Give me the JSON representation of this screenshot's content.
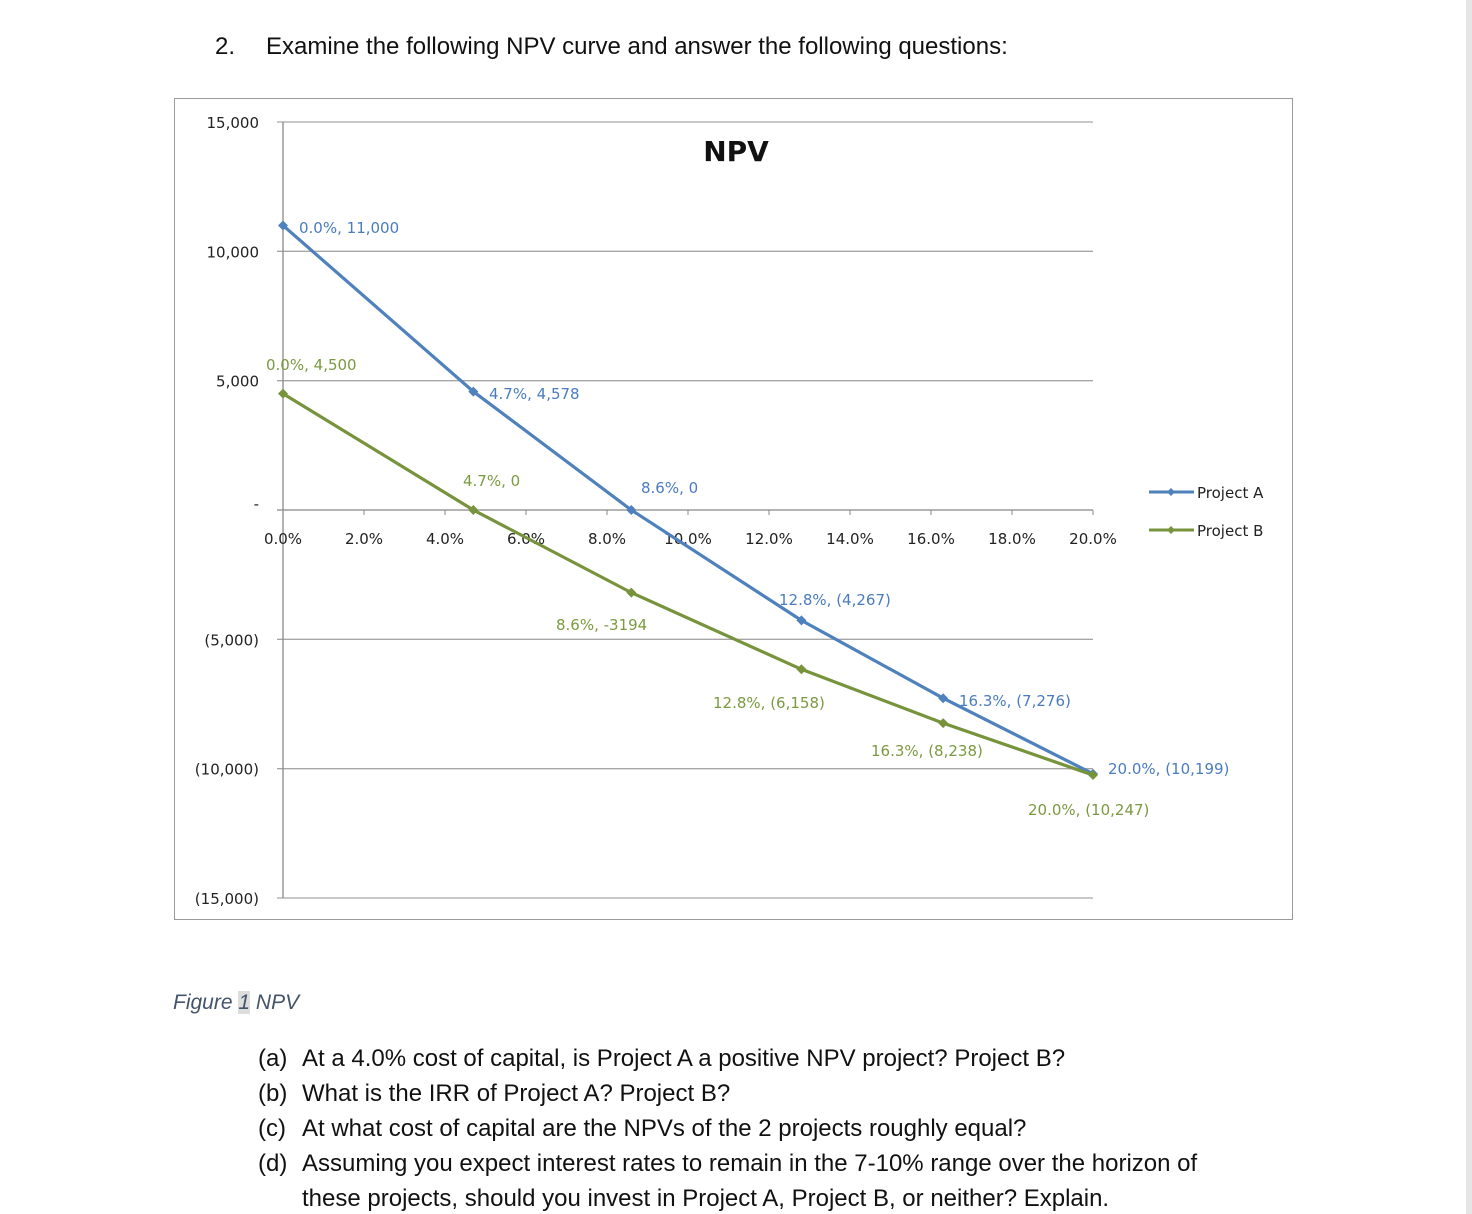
{
  "question": {
    "number": "2.",
    "text": "Examine the following NPV curve and answer the following questions:"
  },
  "caption": {
    "prefix": "Figure",
    "number": "1",
    "suffix": "NPV"
  },
  "subquestions": [
    {
      "label": "(a)",
      "text": "At a 4.0% cost of capital, is Project A a positive NPV project? Project B?"
    },
    {
      "label": "(b)",
      "text": "What is the IRR of Project A? Project B?"
    },
    {
      "label": "(c)",
      "text": "At what cost of capital are the NPVs of the 2 projects roughly equal?"
    },
    {
      "label": "(d)",
      "text": "Assuming you expect interest rates to remain in the 7-10% range over the horizon of"
    },
    {
      "label": "",
      "text": "these projects, should you invest in Project A, Project B, or neither? Explain."
    }
  ],
  "chart_data": {
    "type": "line",
    "title": "NPV",
    "xlabel": "",
    "ylabel": "",
    "xlim": [
      0,
      20
    ],
    "ylim": [
      -15000,
      15000
    ],
    "grid": true,
    "legend": "right",
    "x_ticks": [
      "0.0%",
      "2.0%",
      "4.0%",
      "6.0%",
      "8.0%",
      "10.0%",
      "12.0%",
      "14.0%",
      "16.0%",
      "18.0%",
      "20.0%"
    ],
    "y_ticks": [
      "15,000",
      "10,000",
      "5,000",
      "-",
      "(5,000)",
      "(10,000)",
      "(15,000)"
    ],
    "series": [
      {
        "name": "Project A",
        "color": "#4f81bd",
        "label_color": "#4a7cc0",
        "x": [
          0,
          4.7,
          8.6,
          12.8,
          16.3,
          20.0
        ],
        "y": [
          11000,
          4578,
          0,
          -4267,
          -7276,
          -10199
        ],
        "labels": [
          "0.0%,  11,000",
          "4.7%,  4,578",
          "8.6%,  0",
          "12.8%,  (4,267)",
          "16.3%,  (7,276)",
          "20.0%,  (10,199)"
        ]
      },
      {
        "name": "Project B",
        "color": "#77933c",
        "label_color": "#7a9a40",
        "x": [
          0,
          4.7,
          8.6,
          12.8,
          16.3,
          20.0
        ],
        "y": [
          4500,
          0,
          -3194,
          -6158,
          -8238,
          -10247
        ],
        "labels": [
          "0.0%,  4,500",
          "4.7%, 0",
          "8.6%, -3194",
          "12.8%,  (6,158)",
          "16.3%,  (8,238)",
          "20.0%,  (10,247)"
        ]
      }
    ]
  }
}
